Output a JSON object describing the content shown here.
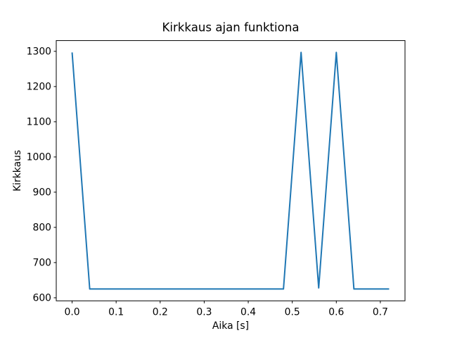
{
  "chart_data": {
    "type": "line",
    "title": "Kirkkaus ajan funktiona",
    "xlabel": "Aika [s]",
    "ylabel": "Kirkkaus",
    "x": [
      0.0,
      0.04,
      0.08,
      0.12,
      0.16,
      0.2,
      0.24,
      0.28,
      0.32,
      0.36,
      0.4,
      0.44,
      0.48,
      0.52,
      0.56,
      0.6,
      0.64,
      0.68,
      0.72
    ],
    "y": [
      1297,
      625,
      625,
      625,
      625,
      625,
      625,
      625,
      625,
      625,
      625,
      625,
      625,
      1297,
      628,
      1297,
      625,
      625,
      625
    ],
    "xticks": [
      0.0,
      0.1,
      0.2,
      0.3,
      0.4,
      0.5,
      0.6,
      0.7
    ],
    "yticks": [
      600,
      700,
      800,
      900,
      1000,
      1100,
      1200,
      1300
    ],
    "xlim": [
      -0.036,
      0.756
    ],
    "ylim": [
      591.4,
      1330.6
    ],
    "x_tick_decimals": 1,
    "line_color": "#1f77b4",
    "axis_color": "#000000",
    "background_color": "#ffffff",
    "grid": false,
    "legend": null
  }
}
